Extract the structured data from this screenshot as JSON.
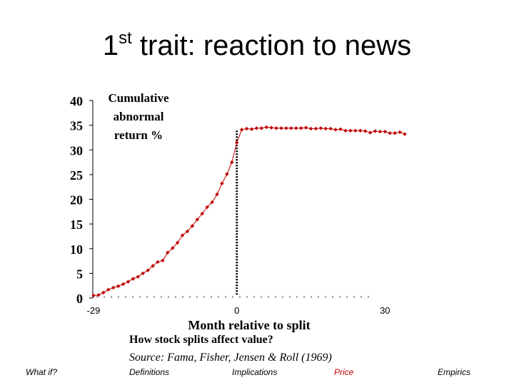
{
  "slide": {
    "title_prefix": "1",
    "title_sup": "st",
    "title_rest": " trait: reaction to news",
    "caption_1": "How stock splits affect value?",
    "caption_2": "Source:  Fama, Fisher, Jensen & Roll (1969)",
    "nav": [
      {
        "label": "What if?",
        "active": false
      },
      {
        "label": "Definitions",
        "active": false
      },
      {
        "label": "Implications",
        "active": false
      },
      {
        "label": "Price",
        "active": true
      },
      {
        "label": "Empirics",
        "active": false
      }
    ]
  },
  "colors": {
    "series": "#c00000",
    "axis": "#000000",
    "event_line": "#000000"
  },
  "chart_data": {
    "type": "line",
    "ylabel_lines": [
      "Cumulative",
      "abnormal",
      "return %"
    ],
    "xlabel": "Month relative to split",
    "yticks": [
      "0",
      "5",
      "10",
      "15",
      "20",
      "25",
      "30",
      "35",
      "40"
    ],
    "xtick_labels": [
      {
        "x": -29,
        "label": "-29"
      },
      {
        "x": 0,
        "label": "0"
      },
      {
        "x": 30,
        "label": "30"
      }
    ],
    "xlim": [
      -29,
      34
    ],
    "ylim": [
      0,
      40
    ],
    "event_line_x": 0,
    "series": [
      {
        "x": [
          -29,
          -28,
          -27,
          -26,
          -25,
          -24,
          -23,
          -22,
          -21,
          -20,
          -19,
          -18,
          -17,
          -16,
          -15,
          -14,
          -13,
          -12,
          -11,
          -10,
          -9,
          -8,
          -7,
          -6,
          -5,
          -4,
          -3,
          -2,
          -1,
          0,
          1,
          2,
          3,
          4,
          5,
          6,
          7,
          8,
          9,
          10,
          11,
          12,
          13,
          14,
          15,
          16,
          17,
          18,
          19,
          20,
          21,
          22,
          23,
          24,
          25,
          26,
          27,
          28,
          29,
          30,
          31,
          32,
          33,
          34
        ],
        "y": [
          0.5,
          0.6,
          1.1,
          1.7,
          2.1,
          2.4,
          2.8,
          3.3,
          3.9,
          4.3,
          5.0,
          5.6,
          6.5,
          7.3,
          7.6,
          9.2,
          10.1,
          11.2,
          12.7,
          13.5,
          14.6,
          15.9,
          17.1,
          18.4,
          19.4,
          21.0,
          23.2,
          25.1,
          27.5,
          31.5,
          34.1,
          34.3,
          34.2,
          34.4,
          34.4,
          34.6,
          34.5,
          34.4,
          34.4,
          34.4,
          34.4,
          34.4,
          34.4,
          34.5,
          34.3,
          34.3,
          34.4,
          34.3,
          34.3,
          34.1,
          34.2,
          33.9,
          33.9,
          33.9,
          33.9,
          33.8,
          33.5,
          33.8,
          33.7,
          33.7,
          33.4,
          33.4,
          33.6,
          33.2
        ]
      }
    ]
  }
}
